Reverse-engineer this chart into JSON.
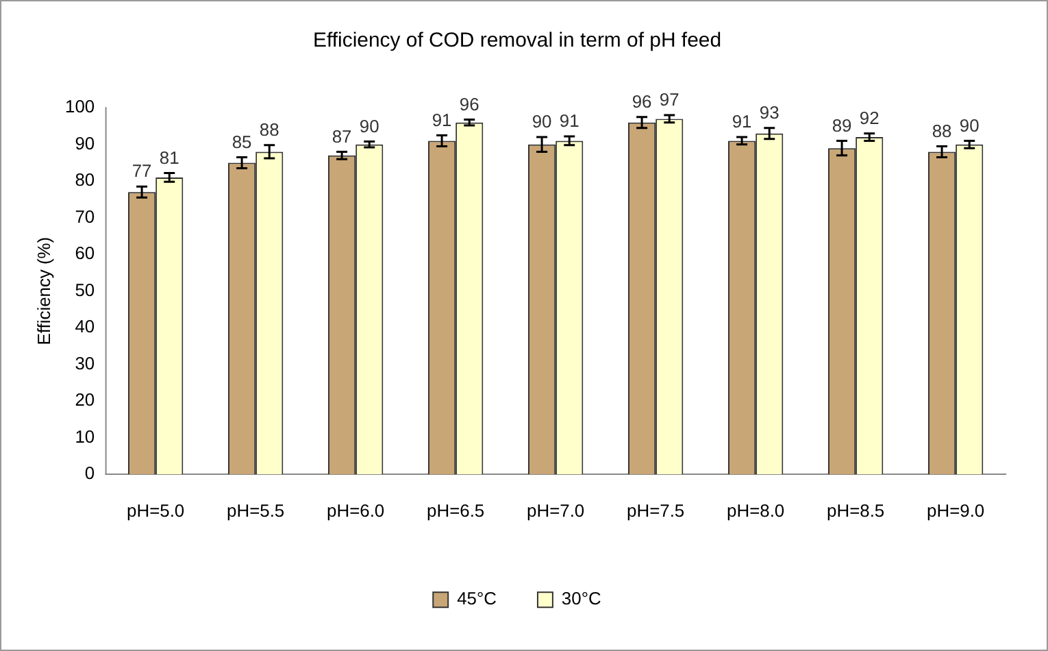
{
  "chart_data": {
    "type": "bar",
    "title": "Efficiency of COD removal in term of pH feed",
    "ylabel": "Efficiency (%)",
    "categories": [
      "pH=5.0",
      "pH=5.5",
      "pH=6.0",
      "pH=6.5",
      "pH=7.0",
      "pH=7.5",
      "pH=8.0",
      "pH=8.5",
      "pH=9.0"
    ],
    "series": [
      {
        "name": "45°C",
        "color": "#c9a676",
        "values": [
          77,
          85,
          87,
          91,
          90,
          96,
          91,
          89,
          88
        ],
        "errors": [
          1.5,
          1.5,
          1,
          1.5,
          2,
          1.5,
          1,
          2,
          1.5
        ]
      },
      {
        "name": "30°C",
        "color": "#ffffcc",
        "values": [
          81,
          88,
          90,
          96,
          91,
          97,
          93,
          92,
          90
        ],
        "errors": [
          1.2,
          1.8,
          0.8,
          0.8,
          1.2,
          1,
          1.5,
          1,
          1
        ]
      }
    ],
    "ylim": [
      0,
      100
    ],
    "yticks": [
      0,
      10,
      20,
      30,
      40,
      50,
      60,
      70,
      80,
      90,
      100
    ],
    "grid": false,
    "legend": "bottom",
    "data_labels": true
  }
}
